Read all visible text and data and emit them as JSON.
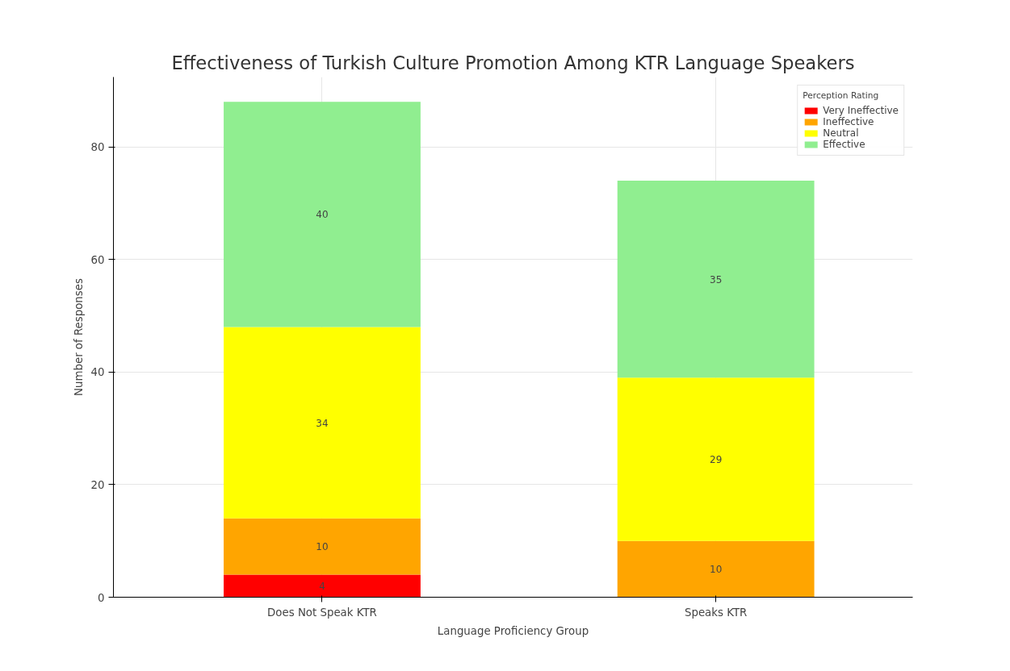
{
  "chart_data": {
    "type": "bar",
    "stacked": true,
    "title": "Effectiveness of Turkish Culture Promotion Among KTR Language Speakers",
    "xlabel": "Language Proficiency Group",
    "ylabel": "Number of Responses",
    "legend_title": "Perception Rating",
    "categories": [
      "Does Not Speak KTR",
      "Speaks KTR"
    ],
    "series": [
      {
        "name": "Very Ineffective",
        "color": "#ff0000",
        "values": [
          4,
          0
        ],
        "value_labels": [
          "4",
          null
        ]
      },
      {
        "name": "Ineffective",
        "color": "#ffa500",
        "values": [
          10,
          10
        ],
        "value_labels": [
          "10",
          "10"
        ]
      },
      {
        "name": "Neutral",
        "color": "#ffff00",
        "values": [
          34,
          29
        ],
        "value_labels": [
          "34",
          "29"
        ]
      },
      {
        "name": "Effective",
        "color": "#90ee90",
        "values": [
          40,
          35
        ],
        "value_labels": [
          "40",
          "35"
        ]
      }
    ],
    "ylim": [
      0,
      92.4
    ],
    "yticks": [
      0,
      20,
      40,
      60,
      80
    ],
    "grid": true,
    "legend": "top right"
  }
}
